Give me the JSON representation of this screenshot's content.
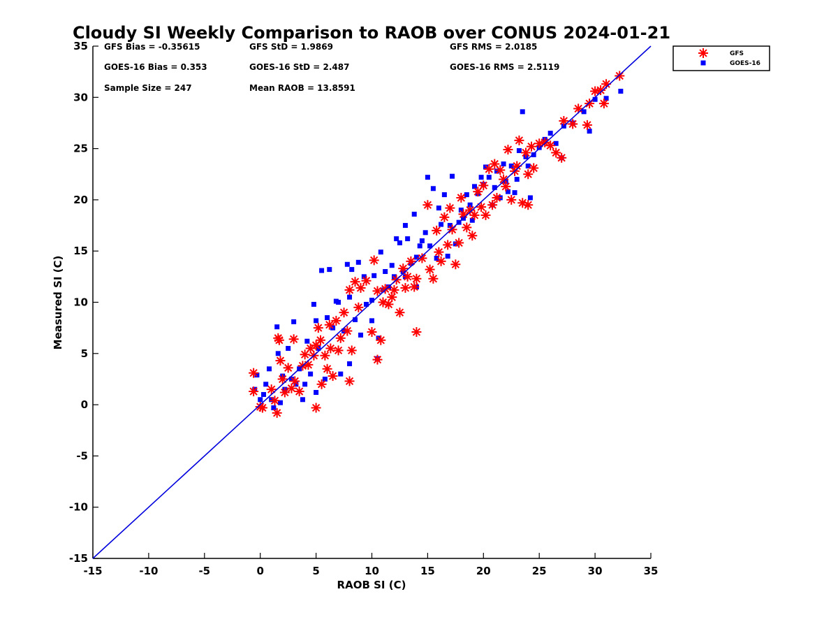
{
  "chart_data": {
    "type": "scatter",
    "title": "Cloudy SI Weekly Comparison to RAOB over CONUS 2024-01-21",
    "xlabel": "RAOB SI (C)",
    "ylabel": "Measured SI (C)",
    "xlim": [
      -15,
      35
    ],
    "ylim": [
      -15,
      35
    ],
    "xticks": [
      "-15",
      "-10",
      "-5",
      "0",
      "5",
      "10",
      "15",
      "20",
      "25",
      "30",
      "35"
    ],
    "yticks": [
      "-15",
      "-10",
      "-5",
      "0",
      "5",
      "10",
      "15",
      "20",
      "25",
      "30",
      "35"
    ],
    "grid": false,
    "legend_position": "outside top-right",
    "reference_line": {
      "x": [
        -15,
        35
      ],
      "y": [
        -15,
        35
      ],
      "color": "#0000dd"
    },
    "stats": [
      "GFS Bias = -0.35615",
      "GFS StD = 1.9869",
      "GFS RMS = 2.0185",
      "GOES-16 Bias = 0.353",
      "GOES-16 StD = 2.487",
      "GOES-16 RMS = 2.5119",
      "Sample Size = 247",
      "Mean RAOB = 13.8591"
    ],
    "series": [
      {
        "name": "GFS",
        "marker": "asterisk",
        "color": "#ff0000",
        "x": [
          -0.6,
          -0.6,
          0,
          0.2,
          1,
          1.3,
          1.5,
          1.6,
          1.8,
          1.7,
          2,
          2.2,
          2.5,
          2.8,
          3,
          3.1,
          3.5,
          3.8,
          4,
          4.3,
          4.5,
          4.8,
          5,
          5,
          5.2,
          5.4,
          5.5,
          5.8,
          6,
          6.2,
          6.3,
          6.5,
          6.8,
          7,
          7.2,
          7.5,
          7.8,
          8,
          8,
          8.2,
          8.5,
          8.8,
          9,
          9.5,
          10,
          10.2,
          10.5,
          10.5,
          10.8,
          11,
          11.2,
          11.5,
          11.8,
          12,
          12.2,
          12.5,
          12.8,
          13,
          13.2,
          13.5,
          13.8,
          14,
          14,
          14.5,
          15,
          15.2,
          15.5,
          15.8,
          16,
          16.2,
          16.5,
          16.8,
          17,
          17.2,
          17.5,
          17.8,
          18,
          18.2,
          18.5,
          18.8,
          19,
          19.2,
          19.5,
          19.8,
          20,
          20.2,
          20.5,
          20.8,
          21,
          21.2,
          21.5,
          21.8,
          22,
          22.2,
          22.5,
          22.8,
          23,
          23.2,
          23.5,
          23.8,
          24,
          24,
          24.3,
          24.5,
          25,
          25.5,
          26,
          26.5,
          27,
          27.2,
          28,
          28.5,
          29.3,
          29.5,
          30,
          30.5,
          30.8,
          31,
          32.2
        ],
        "y": [
          3.1,
          1.3,
          -0.2,
          -0.3,
          1.5,
          0.4,
          -0.8,
          6.5,
          4.3,
          6.3,
          2.5,
          1.2,
          3.6,
          1.6,
          6.4,
          2.3,
          1.3,
          3.8,
          4.9,
          3.9,
          5.5,
          4.8,
          5.8,
          -0.3,
          7.5,
          6.3,
          2,
          4.8,
          3.5,
          7.8,
          5.5,
          2.8,
          8.2,
          5.3,
          6.5,
          9,
          7.2,
          11.2,
          2.3,
          5.3,
          12,
          9.5,
          11.4,
          12.1,
          7.1,
          14.1,
          11.1,
          4.4,
          6.3,
          10,
          11.3,
          9.8,
          10.5,
          11.2,
          12.2,
          9,
          13.3,
          11.4,
          12.5,
          14,
          11.5,
          12.3,
          7.1,
          14.3,
          19.5,
          13.2,
          12.3,
          17,
          14.9,
          14,
          18.3,
          15.6,
          19.2,
          17.1,
          13.7,
          15.8,
          20.2,
          18.6,
          17.3,
          19,
          16.5,
          18.5,
          20.8,
          19.3,
          21.4,
          18.5,
          23,
          19.5,
          23.5,
          20.2,
          22.9,
          22,
          21.3,
          24.9,
          20,
          22.8,
          23.3,
          25.8,
          19.7,
          24.6,
          19.5,
          22.5,
          25.2,
          23.1,
          25.5,
          25.6,
          25.3,
          24.6,
          24.1,
          27.7,
          27.4,
          28.9,
          27.3,
          29.4,
          30.6,
          30.7,
          29.4,
          31.3,
          32.1
        ]
      },
      {
        "name": "GOES-16",
        "marker": "square",
        "color": "#0000ff",
        "x": [
          -0.5,
          -0.3,
          0,
          0.3,
          0.5,
          0.8,
          1,
          1.2,
          1.5,
          1.6,
          1.8,
          2,
          2.2,
          2.5,
          2.8,
          3,
          3.2,
          3.5,
          3.8,
          4,
          4.2,
          4.5,
          4.8,
          5,
          5,
          5.2,
          5.5,
          5.8,
          6,
          6.2,
          6.5,
          6.8,
          7,
          7.2,
          7.5,
          7.8,
          8,
          8,
          8.2,
          8.5,
          8.8,
          9,
          9.3,
          9.5,
          10,
          10,
          10.2,
          10.5,
          10.6,
          10.8,
          11,
          11.2,
          11.5,
          11.8,
          12,
          12.2,
          12.5,
          12.8,
          13,
          13,
          13.2,
          13.5,
          13.8,
          14,
          14,
          14.3,
          14.5,
          14.8,
          15,
          15.2,
          15.5,
          15.8,
          16,
          16.2,
          16.5,
          16.8,
          17,
          17.2,
          17.5,
          17.8,
          18,
          18.2,
          18.5,
          18.8,
          19,
          19.2,
          19.5,
          19.8,
          20,
          20.2,
          20.5,
          20.8,
          21,
          21.2,
          21.5,
          21.8,
          22,
          22.2,
          22.5,
          22.8,
          23,
          23.2,
          23.5,
          23.8,
          24,
          24.2,
          24.5,
          25,
          25.5,
          26,
          26.5,
          27,
          27.2,
          28,
          29,
          29.5,
          30,
          31,
          32.3
        ],
        "y": [
          1.5,
          2.9,
          0.5,
          1,
          2,
          3.5,
          0.5,
          -0.3,
          7.6,
          5,
          0.2,
          2.8,
          1.5,
          5.5,
          2.5,
          8.1,
          2,
          3.5,
          0.5,
          2,
          6.2,
          3,
          9.8,
          8.2,
          1.2,
          5.5,
          13.1,
          2.5,
          8.5,
          13.2,
          7.5,
          10.1,
          10,
          3,
          7.2,
          13.7,
          4,
          10.5,
          13.2,
          8.3,
          13.9,
          6.8,
          12.5,
          9.8,
          8.2,
          10.2,
          12.6,
          4.5,
          6.5,
          14.9,
          11.2,
          13,
          11.5,
          13.6,
          12.5,
          16.2,
          15.8,
          13,
          17.5,
          12.5,
          16.2,
          13.8,
          18.6,
          14.4,
          11.5,
          15.5,
          16,
          16.8,
          22.2,
          15.5,
          21.1,
          14.3,
          19.2,
          17.6,
          20.5,
          14.5,
          17.5,
          22.3,
          15.7,
          17.8,
          19,
          18.2,
          20.5,
          19.5,
          18,
          21.3,
          20.6,
          22.2,
          21.5,
          23.2,
          22.2,
          19.5,
          21.2,
          22.8,
          20.2,
          23.5,
          21.8,
          20.8,
          23.3,
          20.7,
          22,
          24.8,
          28.6,
          24.2,
          23.3,
          20.2,
          24.4,
          25.1,
          25.9,
          26.5,
          25.5,
          24.1,
          27.2,
          27.5,
          28.6,
          26.7,
          29.8,
          29.9,
          30.6
        ]
      }
    ]
  }
}
